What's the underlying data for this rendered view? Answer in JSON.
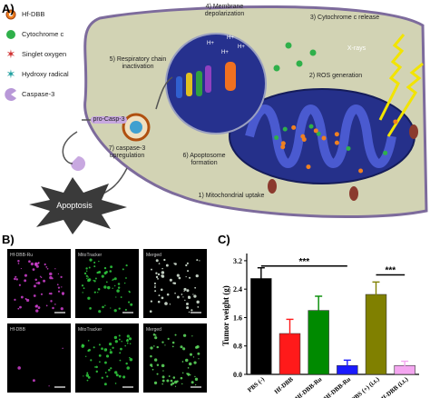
{
  "panels": {
    "a": "A)",
    "b": "B)",
    "c": "C)"
  },
  "diagram": {
    "legend": [
      "Hf-DBB",
      "Cytochrome c",
      "Singlet oxygen",
      "Hydroxy radical",
      "Caspase-3"
    ],
    "labels": {
      "depolarization": "4) Membrane depolarization",
      "release": "3) Cytochrome c release",
      "xrays": "X-rays",
      "respiratory": "5) Respiratory chain inactivation",
      "ros": "2) ROS generation",
      "procasp": "pro-Casp-3",
      "upregulation": "7) caspase-3 upregulation",
      "apoptosome": "6) Apoptosome formation",
      "apoptosis": "Apoptosis",
      "uptake": "1) Mitochondrial uptake"
    },
    "protons": [
      "H+",
      "H+",
      "H+",
      "H+"
    ]
  },
  "microscopy": {
    "rows": [
      [
        "Hf-DBB-Ru",
        "MitoTracker",
        "Merged"
      ],
      [
        "Hf-DBB",
        "MitoTracker",
        "Merged"
      ]
    ]
  },
  "chart_data": {
    "type": "bar",
    "ylabel": "Tumor weight (g)",
    "categories": [
      "PBS (-)",
      "Hf-DBB",
      "Hf-DBB-Ru",
      "Hf-DBB-Ru",
      "PBS (+) (i.t.)",
      "Hf-DBB (i.t.)"
    ],
    "values": [
      2.7,
      1.15,
      1.8,
      0.25,
      2.25,
      0.25
    ],
    "errors": [
      0.3,
      0.4,
      0.4,
      0.15,
      0.35,
      0.12
    ],
    "colors": [
      "#000000",
      "#ff1a1a",
      "#008a00",
      "#1a1aff",
      "#808000",
      "#f4a6f0"
    ],
    "ylim": [
      0,
      3.3
    ],
    "yticks": [
      {
        "value": 0,
        "label": "0.0"
      },
      {
        "value": 0.8,
        "label": "0.8"
      },
      {
        "value": 1.6,
        "label": "1.6"
      },
      {
        "value": 2.4,
        "label": "2.4"
      },
      {
        "value": 3.2,
        "label": "3.2"
      }
    ],
    "annotations": [
      "***",
      "***"
    ]
  }
}
